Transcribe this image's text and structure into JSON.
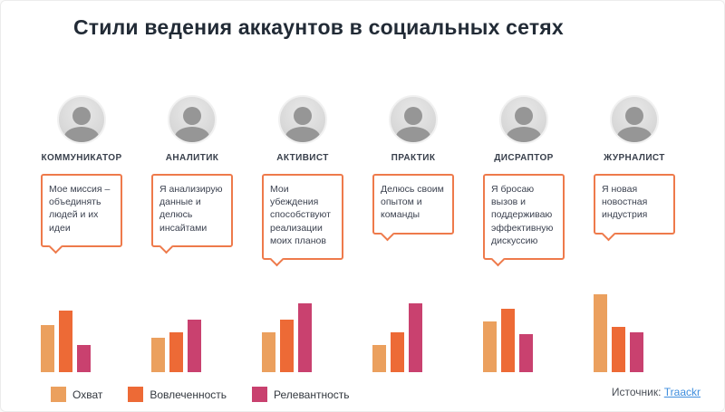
{
  "title": "Стили ведения аккаунтов в социальных сетях",
  "profiles": [
    {
      "name": "КОММУНИКАТОР",
      "quote": "Мое миссия – объединять людей и их идеи"
    },
    {
      "name": "АНАЛИТИК",
      "quote": "Я анализирую данные и делюсь инсайтами"
    },
    {
      "name": "АКТИВИСТ",
      "quote": "Мои убеждения способствуют реализации моих планов"
    },
    {
      "name": "ПРАКТИК",
      "quote": "Делюсь своим опытом и команды"
    },
    {
      "name": "ДИСРАПТОР",
      "quote": "Я бросаю вызов и поддерживаю эффективную дискуссию"
    },
    {
      "name": "ЖУРНАЛИСТ",
      "quote": "Я новая новостная индустрия"
    }
  ],
  "chart_data": {
    "type": "bar",
    "title": "Стили ведения аккаунтов в социальных сетях",
    "categories": [
      "КОММУНИКАТОР",
      "АНАЛИТИК",
      "АКТИВИСТ",
      "ПРАКТИК",
      "ДИСРАПТОР",
      "ЖУРНАЛИСТ"
    ],
    "series": [
      {
        "name": "Охват",
        "color": "#EBA05E",
        "values": [
          52,
          38,
          44,
          30,
          56,
          86
        ]
      },
      {
        "name": "Вовлеченность",
        "color": "#ED6A36",
        "values": [
          68,
          44,
          58,
          44,
          70,
          50
        ]
      },
      {
        "name": "Релевантность",
        "color": "#C9416F",
        "values": [
          30,
          58,
          76,
          76,
          42,
          44
        ]
      }
    ],
    "ylim": [
      0,
      100
    ],
    "grid": false,
    "legend_position": "bottom-left"
  },
  "source": {
    "label": "Источник:",
    "link_text": "Traackr"
  },
  "colors": {
    "bubble_border": "#EE7A4B",
    "title_text": "#222B36",
    "link": "#3F8EDE"
  }
}
